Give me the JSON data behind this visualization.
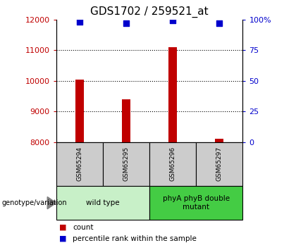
{
  "title": "GDS1702 / 259521_at",
  "samples": [
    "GSM65294",
    "GSM65295",
    "GSM65296",
    "GSM65297"
  ],
  "count_values": [
    10050,
    9400,
    11100,
    8100
  ],
  "percentile_values": [
    98,
    97,
    99,
    97
  ],
  "ylim_left": [
    8000,
    12000
  ],
  "ylim_right": [
    0,
    100
  ],
  "yticks_left": [
    8000,
    9000,
    10000,
    11000,
    12000
  ],
  "yticks_right": [
    0,
    25,
    50,
    75,
    100
  ],
  "yticklabels_right": [
    "0",
    "25",
    "50",
    "75",
    "100%"
  ],
  "bar_color": "#c00000",
  "scatter_color": "#0000cc",
  "bar_bottom": 8000,
  "group_colors": [
    "#c8f0c8",
    "#44cc44"
  ],
  "group_labels": [
    "wild type",
    "phyA phyB double\nmutant"
  ],
  "group_label_text": "genotype/variation",
  "legend_count_label": "count",
  "legend_percentile_label": "percentile rank within the sample",
  "title_fontsize": 11,
  "tick_fontsize": 8,
  "sample_box_color": "#cccccc",
  "x_positions": [
    0.5,
    1.5,
    2.5,
    3.5
  ],
  "bar_width": 0.18
}
